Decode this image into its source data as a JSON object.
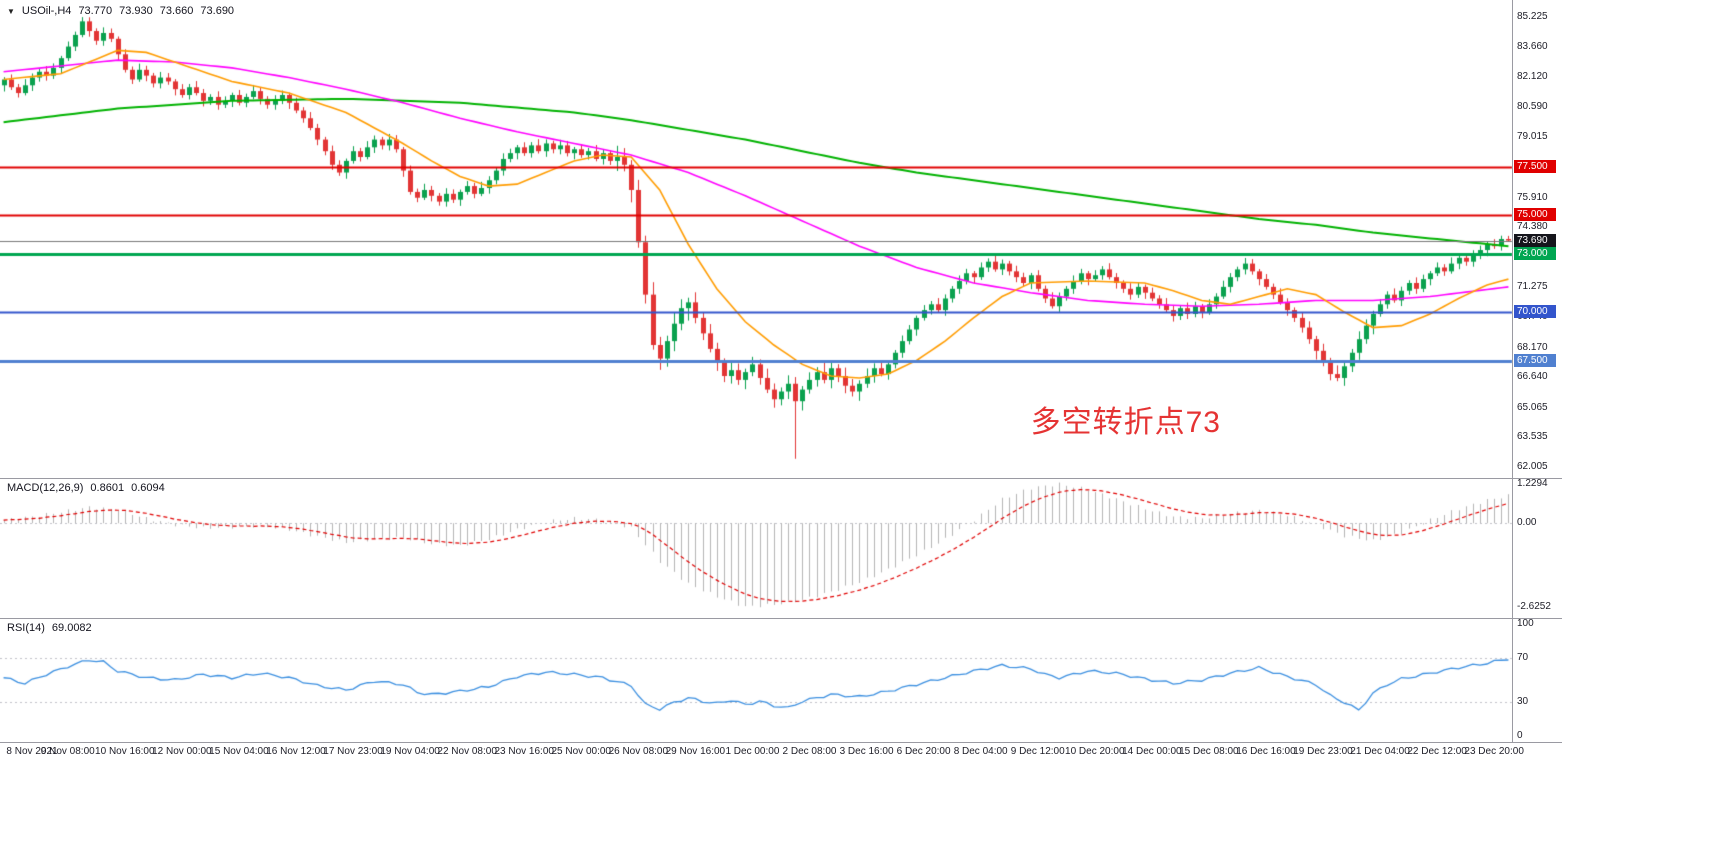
{
  "header": {
    "dropdown_icon": "▼",
    "symbol": "USOil-,H4",
    "open": "73.770",
    "high": "73.930",
    "low": "73.660",
    "close": "73.690"
  },
  "colors": {
    "background": "#ffffff",
    "bull": "#0aa14e",
    "bear": "#e23434",
    "macd_histogram": "#b4b4b4",
    "macd_signal": "#e00000",
    "rsi_line": "#3b8fe0",
    "level_dash": "#c0c0c8",
    "axis_text": "#20202a",
    "divider": "#9a9aa2"
  },
  "annotation": {
    "text": "多空转折点73",
    "color": "#e53333",
    "bar": 144,
    "price": 65.4,
    "font_size": 30
  },
  "hlines": [
    {
      "price": 77.5,
      "label": "77.500",
      "color": "#e00000",
      "width": 2
    },
    {
      "price": 75.0,
      "label": "75.000",
      "color": "#e00000",
      "width": 2
    },
    {
      "price": 73.0,
      "label": "73.000",
      "color": "#00a651",
      "width": 3
    },
    {
      "price": 70.0,
      "label": "70.000",
      "color": "#3355cc",
      "width": 2
    },
    {
      "price": 67.5,
      "label": "67.500",
      "color": "#5080d0",
      "width": 3
    }
  ],
  "current_price": {
    "value": 73.69,
    "label": "73.690",
    "line_color": "#777777",
    "badge_bg": "#15151c"
  },
  "chart_data": {
    "type": "candlestick",
    "title": "USOil-,H4",
    "timeframe": "H4",
    "ylim": [
      62.005,
      85.225
    ],
    "y_tick_labels": [
      "85.225",
      "83.660",
      "82.120",
      "80.590",
      "79.015",
      "75.910",
      "74.380",
      "71.275",
      "69.740",
      "68.170",
      "66.640",
      "65.065",
      "63.535",
      "62.005"
    ],
    "x_tick_labels": [
      "8 Nov 2021",
      "9 Nov 08:00",
      "10 Nov 16:00",
      "12 Nov 00:00",
      "15 Nov 04:00",
      "16 Nov 12:00",
      "17 Nov 23:00",
      "19 Nov 04:00",
      "22 Nov 08:00",
      "23 Nov 16:00",
      "25 Nov 00:00",
      "26 Nov 08:00",
      "29 Nov 16:00",
      "1 Dec 00:00",
      "2 Dec 08:00",
      "3 Dec 16:00",
      "6 Dec 20:00",
      "8 Dec 04:00",
      "9 Dec 12:00",
      "10 Dec 20:00",
      "14 Dec 00:00",
      "15 Dec 08:00",
      "16 Dec 16:00",
      "19 Dec 23:00",
      "21 Dec 04:00",
      "22 Dec 12:00",
      "23 Dec 20:00"
    ],
    "x_tick_first_bar": 1,
    "x_tick_step": 8,
    "first_open": 81.7,
    "closes": [
      82.0,
      81.6,
      81.3,
      81.7,
      82.1,
      82.4,
      82.2,
      82.6,
      83.1,
      83.7,
      84.3,
      85.0,
      84.5,
      84.0,
      84.4,
      84.1,
      83.3,
      82.5,
      82.0,
      82.5,
      82.2,
      81.8,
      82.1,
      81.9,
      81.5,
      81.2,
      81.6,
      81.3,
      80.9,
      81.1,
      80.7,
      80.9,
      81.2,
      80.8,
      81.1,
      81.4,
      81.0,
      80.7,
      80.9,
      81.2,
      80.8,
      80.4,
      80.0,
      79.5,
      78.9,
      78.3,
      77.6,
      77.2,
      77.8,
      78.3,
      78.0,
      78.5,
      78.9,
      78.6,
      78.9,
      78.4,
      77.3,
      76.2,
      75.9,
      76.3,
      76.0,
      75.7,
      76.1,
      75.8,
      76.2,
      76.5,
      76.1,
      76.4,
      76.8,
      77.3,
      77.9,
      78.2,
      78.5,
      78.2,
      78.6,
      78.3,
      78.7,
      78.4,
      78.6,
      78.2,
      78.4,
      78.1,
      78.3,
      77.9,
      78.2,
      77.8,
      78.0,
      77.6,
      76.3,
      73.6,
      70.9,
      68.3,
      67.6,
      68.5,
      69.4,
      70.2,
      70.5,
      69.7,
      68.9,
      68.1,
      67.4,
      66.7,
      67.0,
      66.5,
      66.9,
      67.3,
      66.6,
      66.0,
      65.5,
      65.9,
      66.3,
      65.4,
      66.0,
      66.5,
      66.9,
      66.5,
      67.1,
      66.7,
      66.2,
      65.9,
      66.3,
      66.7,
      67.1,
      66.8,
      67.3,
      67.9,
      68.5,
      69.1,
      69.7,
      70.1,
      70.4,
      70.1,
      70.7,
      71.2,
      71.6,
      72.0,
      71.8,
      72.3,
      72.6,
      72.2,
      72.5,
      72.1,
      71.8,
      71.5,
      71.9,
      71.2,
      70.7,
      70.3,
      70.8,
      71.2,
      71.6,
      72.0,
      71.7,
      71.9,
      72.2,
      71.8,
      71.5,
      71.2,
      70.9,
      71.3,
      71.0,
      70.7,
      70.4,
      70.1,
      69.8,
      70.2,
      69.9,
      70.3,
      70.0,
      70.4,
      70.8,
      71.3,
      71.8,
      72.2,
      72.5,
      72.1,
      71.7,
      71.3,
      70.9,
      70.5,
      70.1,
      69.7,
      69.2,
      68.6,
      68.0,
      67.4,
      66.8,
      66.6,
      67.2,
      67.9,
      68.6,
      69.3,
      69.9,
      70.4,
      70.9,
      70.6,
      71.1,
      71.5,
      71.2,
      71.7,
      72.0,
      72.3,
      72.1,
      72.5,
      72.8,
      72.6,
      72.9,
      73.2,
      73.5,
      73.4,
      73.77,
      73.69
    ],
    "wick_pattern_up": [
      0.12,
      0.26,
      0.17,
      0.32,
      0.21,
      0.14,
      0.29,
      0.23
    ],
    "wick_pattern_down": [
      0.32,
      0.14,
      0.23,
      0.12,
      0.29,
      0.21,
      0.26,
      0.17
    ],
    "wick_scale_ranges": [
      {
        "from": 86,
        "to": 97,
        "scale": 2.0
      },
      {
        "from": 98,
        "to": 122,
        "scale": 1.5
      },
      {
        "from": 183,
        "to": 192,
        "scale": 1.4
      }
    ],
    "wick_overrides": {
      "11": {
        "h": 85.22
      },
      "111": {
        "l": 62.43
      },
      "211": {
        "h": 73.93,
        "l": 73.66
      }
    },
    "ma_lines": [
      {
        "name": "ma-slow-green",
        "color": "#00b200",
        "width": 2,
        "points": [
          [
            0,
            79.8
          ],
          [
            16,
            80.5
          ],
          [
            32,
            80.9
          ],
          [
            48,
            81.0
          ],
          [
            64,
            80.8
          ],
          [
            80,
            80.3
          ],
          [
            88,
            79.9
          ],
          [
            96,
            79.4
          ],
          [
            104,
            78.9
          ],
          [
            112,
            78.3
          ],
          [
            120,
            77.7
          ],
          [
            128,
            77.2
          ],
          [
            136,
            76.8
          ],
          [
            144,
            76.4
          ],
          [
            152,
            76.0
          ],
          [
            160,
            75.6
          ],
          [
            168,
            75.2
          ],
          [
            176,
            74.8
          ],
          [
            184,
            74.5
          ],
          [
            192,
            74.1
          ],
          [
            200,
            73.8
          ],
          [
            211,
            73.4
          ]
        ]
      },
      {
        "name": "ma-mid-magenta",
        "color": "#ff00ff",
        "width": 1.6,
        "points": [
          [
            0,
            82.4
          ],
          [
            8,
            82.7
          ],
          [
            16,
            83.0
          ],
          [
            24,
            82.9
          ],
          [
            32,
            82.6
          ],
          [
            40,
            82.1
          ],
          [
            48,
            81.5
          ],
          [
            56,
            80.8
          ],
          [
            64,
            80.0
          ],
          [
            72,
            79.3
          ],
          [
            80,
            78.7
          ],
          [
            88,
            78.1
          ],
          [
            96,
            77.2
          ],
          [
            104,
            76.0
          ],
          [
            112,
            74.7
          ],
          [
            120,
            73.4
          ],
          [
            128,
            72.3
          ],
          [
            136,
            71.5
          ],
          [
            144,
            71.0
          ],
          [
            152,
            70.6
          ],
          [
            160,
            70.4
          ],
          [
            168,
            70.3
          ],
          [
            176,
            70.4
          ],
          [
            184,
            70.6
          ],
          [
            192,
            70.6
          ],
          [
            200,
            70.8
          ],
          [
            211,
            71.3
          ]
        ]
      },
      {
        "name": "ma-fast-orange",
        "color": "#ff9c00",
        "width": 1.6,
        "points": [
          [
            0,
            82.0
          ],
          [
            8,
            82.3
          ],
          [
            16,
            83.5
          ],
          [
            20,
            83.4
          ],
          [
            24,
            82.9
          ],
          [
            32,
            81.9
          ],
          [
            40,
            81.3
          ],
          [
            48,
            80.3
          ],
          [
            56,
            78.7
          ],
          [
            60,
            77.8
          ],
          [
            64,
            77.0
          ],
          [
            68,
            76.5
          ],
          [
            72,
            76.6
          ],
          [
            76,
            77.2
          ],
          [
            80,
            77.8
          ],
          [
            84,
            78.1
          ],
          [
            88,
            78.0
          ],
          [
            92,
            76.3
          ],
          [
            96,
            73.5
          ],
          [
            100,
            71.2
          ],
          [
            104,
            69.5
          ],
          [
            108,
            68.3
          ],
          [
            112,
            67.3
          ],
          [
            116,
            66.7
          ],
          [
            120,
            66.6
          ],
          [
            124,
            66.8
          ],
          [
            128,
            67.5
          ],
          [
            132,
            68.5
          ],
          [
            136,
            69.7
          ],
          [
            140,
            70.8
          ],
          [
            144,
            71.5
          ],
          [
            152,
            71.6
          ],
          [
            160,
            71.5
          ],
          [
            164,
            71.1
          ],
          [
            168,
            70.6
          ],
          [
            172,
            70.4
          ],
          [
            176,
            70.8
          ],
          [
            180,
            71.2
          ],
          [
            184,
            70.9
          ],
          [
            188,
            70.0
          ],
          [
            192,
            69.2
          ],
          [
            196,
            69.3
          ],
          [
            200,
            69.9
          ],
          [
            204,
            70.7
          ],
          [
            208,
            71.4
          ],
          [
            211,
            71.7
          ]
        ]
      }
    ]
  },
  "macd": {
    "label": "MACD(12,26,9)",
    "value_main": "0.8601",
    "value_signal": "0.6094",
    "ylim": [
      -2.6252,
      1.2294
    ],
    "axis_labels": [
      {
        "v": 1.2294,
        "t": "1.2294"
      },
      {
        "v": 0,
        "t": "0.00"
      },
      {
        "v": -2.6252,
        "t": "-2.6252"
      }
    ],
    "anchors": [
      [
        0,
        0.1
      ],
      [
        4,
        0.2
      ],
      [
        8,
        0.35
      ],
      [
        12,
        0.5
      ],
      [
        16,
        0.42
      ],
      [
        20,
        0.15
      ],
      [
        24,
        -0.05
      ],
      [
        28,
        -0.15
      ],
      [
        32,
        -0.12
      ],
      [
        36,
        -0.08
      ],
      [
        40,
        -0.2
      ],
      [
        44,
        -0.42
      ],
      [
        48,
        -0.6
      ],
      [
        52,
        -0.5
      ],
      [
        56,
        -0.45
      ],
      [
        60,
        -0.65
      ],
      [
        64,
        -0.7
      ],
      [
        68,
        -0.5
      ],
      [
        72,
        -0.2
      ],
      [
        76,
        0.05
      ],
      [
        80,
        0.15
      ],
      [
        84,
        0.1
      ],
      [
        88,
        -0.15
      ],
      [
        92,
        -1.2
      ],
      [
        96,
        -1.9
      ],
      [
        100,
        -2.3
      ],
      [
        104,
        -2.62
      ],
      [
        108,
        -2.55
      ],
      [
        112,
        -2.4
      ],
      [
        116,
        -2.15
      ],
      [
        120,
        -1.85
      ],
      [
        124,
        -1.45
      ],
      [
        128,
        -1.0
      ],
      [
        132,
        -0.5
      ],
      [
        136,
        0.1
      ],
      [
        140,
        0.75
      ],
      [
        144,
        1.1
      ],
      [
        148,
        1.23
      ],
      [
        152,
        1.05
      ],
      [
        156,
        0.75
      ],
      [
        160,
        0.45
      ],
      [
        164,
        0.2
      ],
      [
        168,
        0.15
      ],
      [
        172,
        0.3
      ],
      [
        176,
        0.4
      ],
      [
        180,
        0.25
      ],
      [
        184,
        -0.05
      ],
      [
        188,
        -0.4
      ],
      [
        192,
        -0.55
      ],
      [
        196,
        -0.3
      ],
      [
        200,
        0.1
      ],
      [
        204,
        0.45
      ],
      [
        208,
        0.72
      ],
      [
        211,
        0.86
      ]
    ]
  },
  "rsi": {
    "label": "RSI(14)",
    "value": "69.0082",
    "ylim": [
      0,
      100
    ],
    "levels": [
      70,
      30
    ],
    "axis_labels": [
      {
        "v": 100,
        "t": "100"
      },
      {
        "v": 70,
        "t": "70"
      },
      {
        "v": 30,
        "t": "30"
      },
      {
        "v": 0,
        "t": "0"
      }
    ],
    "anchors": [
      [
        0,
        52
      ],
      [
        3,
        47
      ],
      [
        6,
        55
      ],
      [
        9,
        62
      ],
      [
        12,
        68
      ],
      [
        14,
        66
      ],
      [
        16,
        58
      ],
      [
        20,
        52
      ],
      [
        24,
        50
      ],
      [
        28,
        55
      ],
      [
        32,
        52
      ],
      [
        36,
        56
      ],
      [
        40,
        52
      ],
      [
        44,
        45
      ],
      [
        48,
        41
      ],
      [
        52,
        49
      ],
      [
        56,
        46
      ],
      [
        58,
        39
      ],
      [
        60,
        37
      ],
      [
        64,
        40
      ],
      [
        68,
        44
      ],
      [
        72,
        53
      ],
      [
        76,
        57
      ],
      [
        80,
        55
      ],
      [
        84,
        52
      ],
      [
        88,
        45
      ],
      [
        90,
        28
      ],
      [
        92,
        24
      ],
      [
        94,
        30
      ],
      [
        96,
        34
      ],
      [
        98,
        31
      ],
      [
        100,
        29
      ],
      [
        102,
        32
      ],
      [
        104,
        28
      ],
      [
        106,
        31
      ],
      [
        108,
        27
      ],
      [
        110,
        25
      ],
      [
        112,
        31
      ],
      [
        116,
        37
      ],
      [
        120,
        35
      ],
      [
        124,
        40
      ],
      [
        128,
        46
      ],
      [
        132,
        52
      ],
      [
        136,
        58
      ],
      [
        140,
        63
      ],
      [
        144,
        60
      ],
      [
        146,
        55
      ],
      [
        148,
        52
      ],
      [
        152,
        58
      ],
      [
        156,
        56
      ],
      [
        160,
        51
      ],
      [
        164,
        47
      ],
      [
        168,
        50
      ],
      [
        172,
        56
      ],
      [
        176,
        61
      ],
      [
        180,
        53
      ],
      [
        184,
        46
      ],
      [
        186,
        36
      ],
      [
        188,
        30
      ],
      [
        190,
        23
      ],
      [
        192,
        38
      ],
      [
        194,
        46
      ],
      [
        196,
        51
      ],
      [
        200,
        56
      ],
      [
        204,
        61
      ],
      [
        208,
        65
      ],
      [
        211,
        69
      ]
    ]
  }
}
